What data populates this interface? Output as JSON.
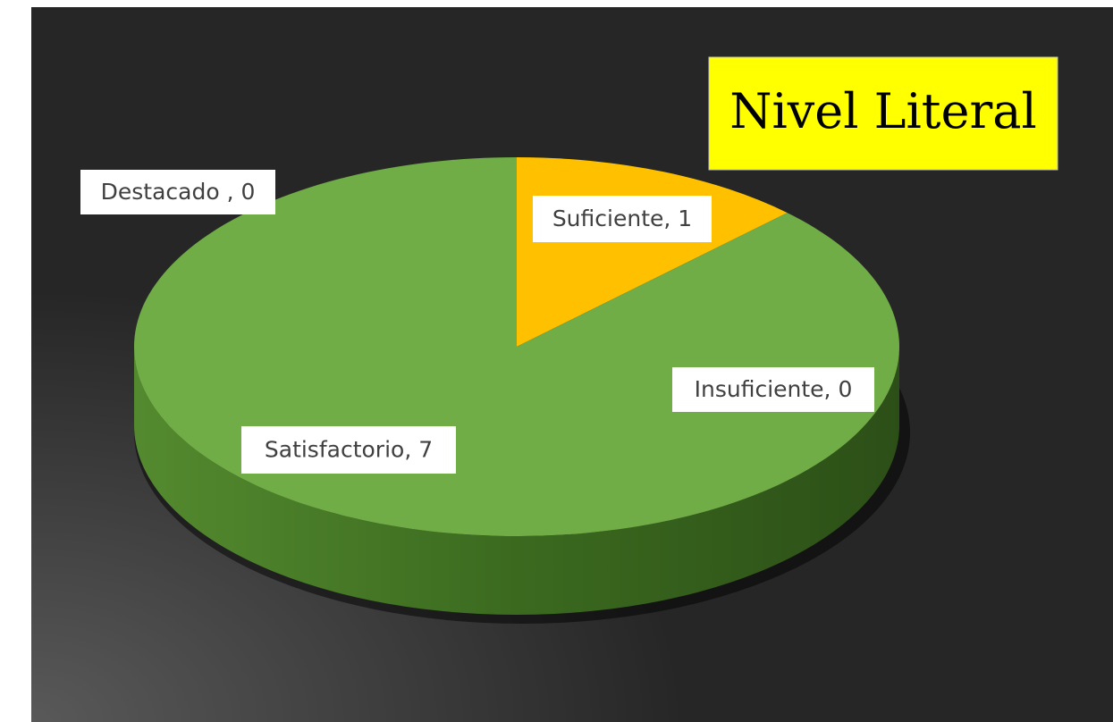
{
  "chart_data": {
    "type": "pie3d",
    "title": "Nivel Literal",
    "values": [
      1,
      0,
      7,
      0
    ],
    "value_labels": [
      "Suficiente, 1",
      "Insuficiente, 0",
      "Satisfactorio, 7",
      "Destacado , 0"
    ],
    "colors": [
      "#ffc000",
      "#a5a5a5",
      "#70ad47",
      "#4472c4"
    ]
  }
}
